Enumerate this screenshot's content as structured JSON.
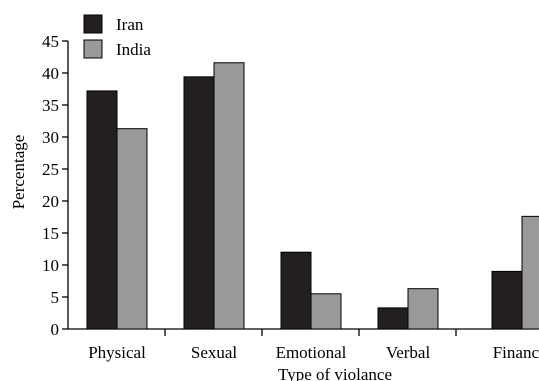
{
  "chart_data": {
    "type": "bar",
    "title": "",
    "xlabel": "Type of violance",
    "ylabel": "Percentage",
    "categories": [
      "Physical",
      "Sexual",
      "Emotional",
      "Verbal",
      "Financia"
    ],
    "series": [
      {
        "name": "Iran",
        "values": [
          37.2,
          39.4,
          12.0,
          3.3,
          9.0
        ],
        "color": "#231f20"
      },
      {
        "name": "India",
        "values": [
          31.3,
          41.6,
          5.5,
          6.3,
          17.6
        ],
        "color": "#999999"
      }
    ],
    "ylim": [
      0,
      45
    ],
    "yticks": [
      "0",
      "5",
      "10",
      "15",
      "20",
      "25",
      "30",
      "35",
      "40",
      "45"
    ],
    "grid": false,
    "legend_position": "top-left"
  }
}
